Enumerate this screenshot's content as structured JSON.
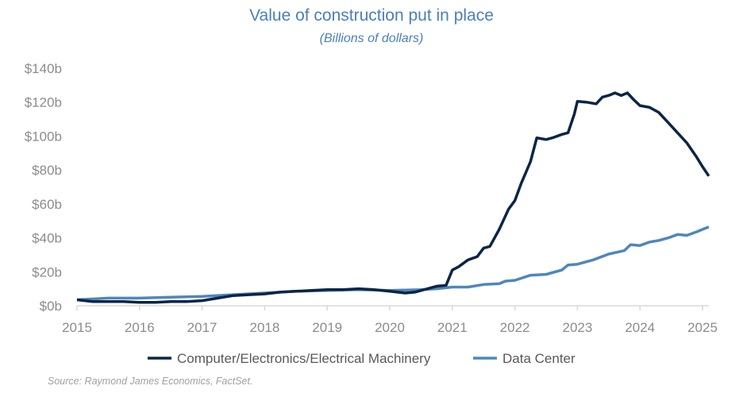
{
  "chart_data": {
    "type": "line",
    "title": "Value of construction put in place",
    "subtitle": "(Billions of dollars)",
    "xlabel": "",
    "ylabel": "",
    "xlim": [
      2015,
      2025.1
    ],
    "ylim": [
      0,
      140
    ],
    "x_ticks": [
      "2015",
      "2016",
      "2017",
      "2018",
      "2019",
      "2020",
      "2021",
      "2022",
      "2023",
      "2024",
      "2025"
    ],
    "y_ticks": [
      "$0b",
      "$20b",
      "$40b",
      "$60b",
      "$80b",
      "$100b",
      "$120b",
      "$140b"
    ],
    "y_tick_values": [
      0,
      20,
      40,
      60,
      80,
      100,
      120,
      140
    ],
    "grid": false,
    "legend_position": "bottom",
    "series": [
      {
        "name": "Computer/Electronics/Electrical Machinery",
        "color": "#0b2545",
        "x": [
          2015,
          2015.25,
          2015.5,
          2015.75,
          2016,
          2016.25,
          2016.5,
          2016.75,
          2017,
          2017.25,
          2017.5,
          2017.75,
          2018,
          2018.25,
          2018.5,
          2018.75,
          2019,
          2019.25,
          2019.5,
          2019.75,
          2020,
          2020.25,
          2020.4,
          2020.5,
          2020.75,
          2020.9,
          2021,
          2021.1,
          2021.25,
          2021.4,
          2021.5,
          2021.6,
          2021.75,
          2021.9,
          2022,
          2022.1,
          2022.25,
          2022.35,
          2022.5,
          2022.6,
          2022.75,
          2022.85,
          2022.95,
          2023,
          2023.15,
          2023.3,
          2023.4,
          2023.5,
          2023.6,
          2023.7,
          2023.8,
          2023.9,
          2024,
          2024.15,
          2024.3,
          2024.45,
          2024.6,
          2024.75,
          2024.9,
          2025,
          2025.1
        ],
        "y": [
          3.5,
          2.5,
          2.5,
          2.5,
          2,
          2,
          2.5,
          2.5,
          3,
          4.5,
          6,
          6.5,
          7,
          8,
          8.5,
          9,
          9.5,
          9.5,
          10,
          9.5,
          8.5,
          7.5,
          8,
          9,
          11.5,
          12,
          21,
          23,
          27,
          29,
          34,
          35,
          45,
          57,
          62,
          72,
          85,
          99,
          98,
          99,
          101,
          102,
          113,
          120.5,
          120,
          119,
          123,
          124,
          125.5,
          124,
          125.5,
          121.5,
          118,
          117,
          114,
          108,
          102,
          96,
          88,
          82,
          76.5
        ]
      },
      {
        "name": "Data Center",
        "color": "#4f86bd",
        "x": [
          2015,
          2015.5,
          2016,
          2016.5,
          2017,
          2017.5,
          2018,
          2018.5,
          2019,
          2019.5,
          2020,
          2020.5,
          2020.75,
          2021,
          2021.25,
          2021.5,
          2021.75,
          2021.85,
          2022,
          2022.25,
          2022.5,
          2022.75,
          2022.85,
          2023,
          2023.25,
          2023.5,
          2023.75,
          2023.85,
          2024,
          2024.15,
          2024.3,
          2024.45,
          2024.6,
          2024.75,
          2024.9,
          2025,
          2025.1
        ],
        "y": [
          3.5,
          4.5,
          4.5,
          5,
          5.5,
          6.5,
          7.5,
          8.5,
          9,
          9.5,
          9,
          9.5,
          10,
          11,
          11,
          12.5,
          13,
          14.5,
          15,
          18,
          18.5,
          21,
          24,
          24.5,
          27,
          30.5,
          32.5,
          36,
          35.5,
          37.5,
          38.5,
          40,
          42,
          41.5,
          43.5,
          45,
          46.5
        ]
      }
    ]
  },
  "source": "Source: Raymond James Economics, FactSet."
}
